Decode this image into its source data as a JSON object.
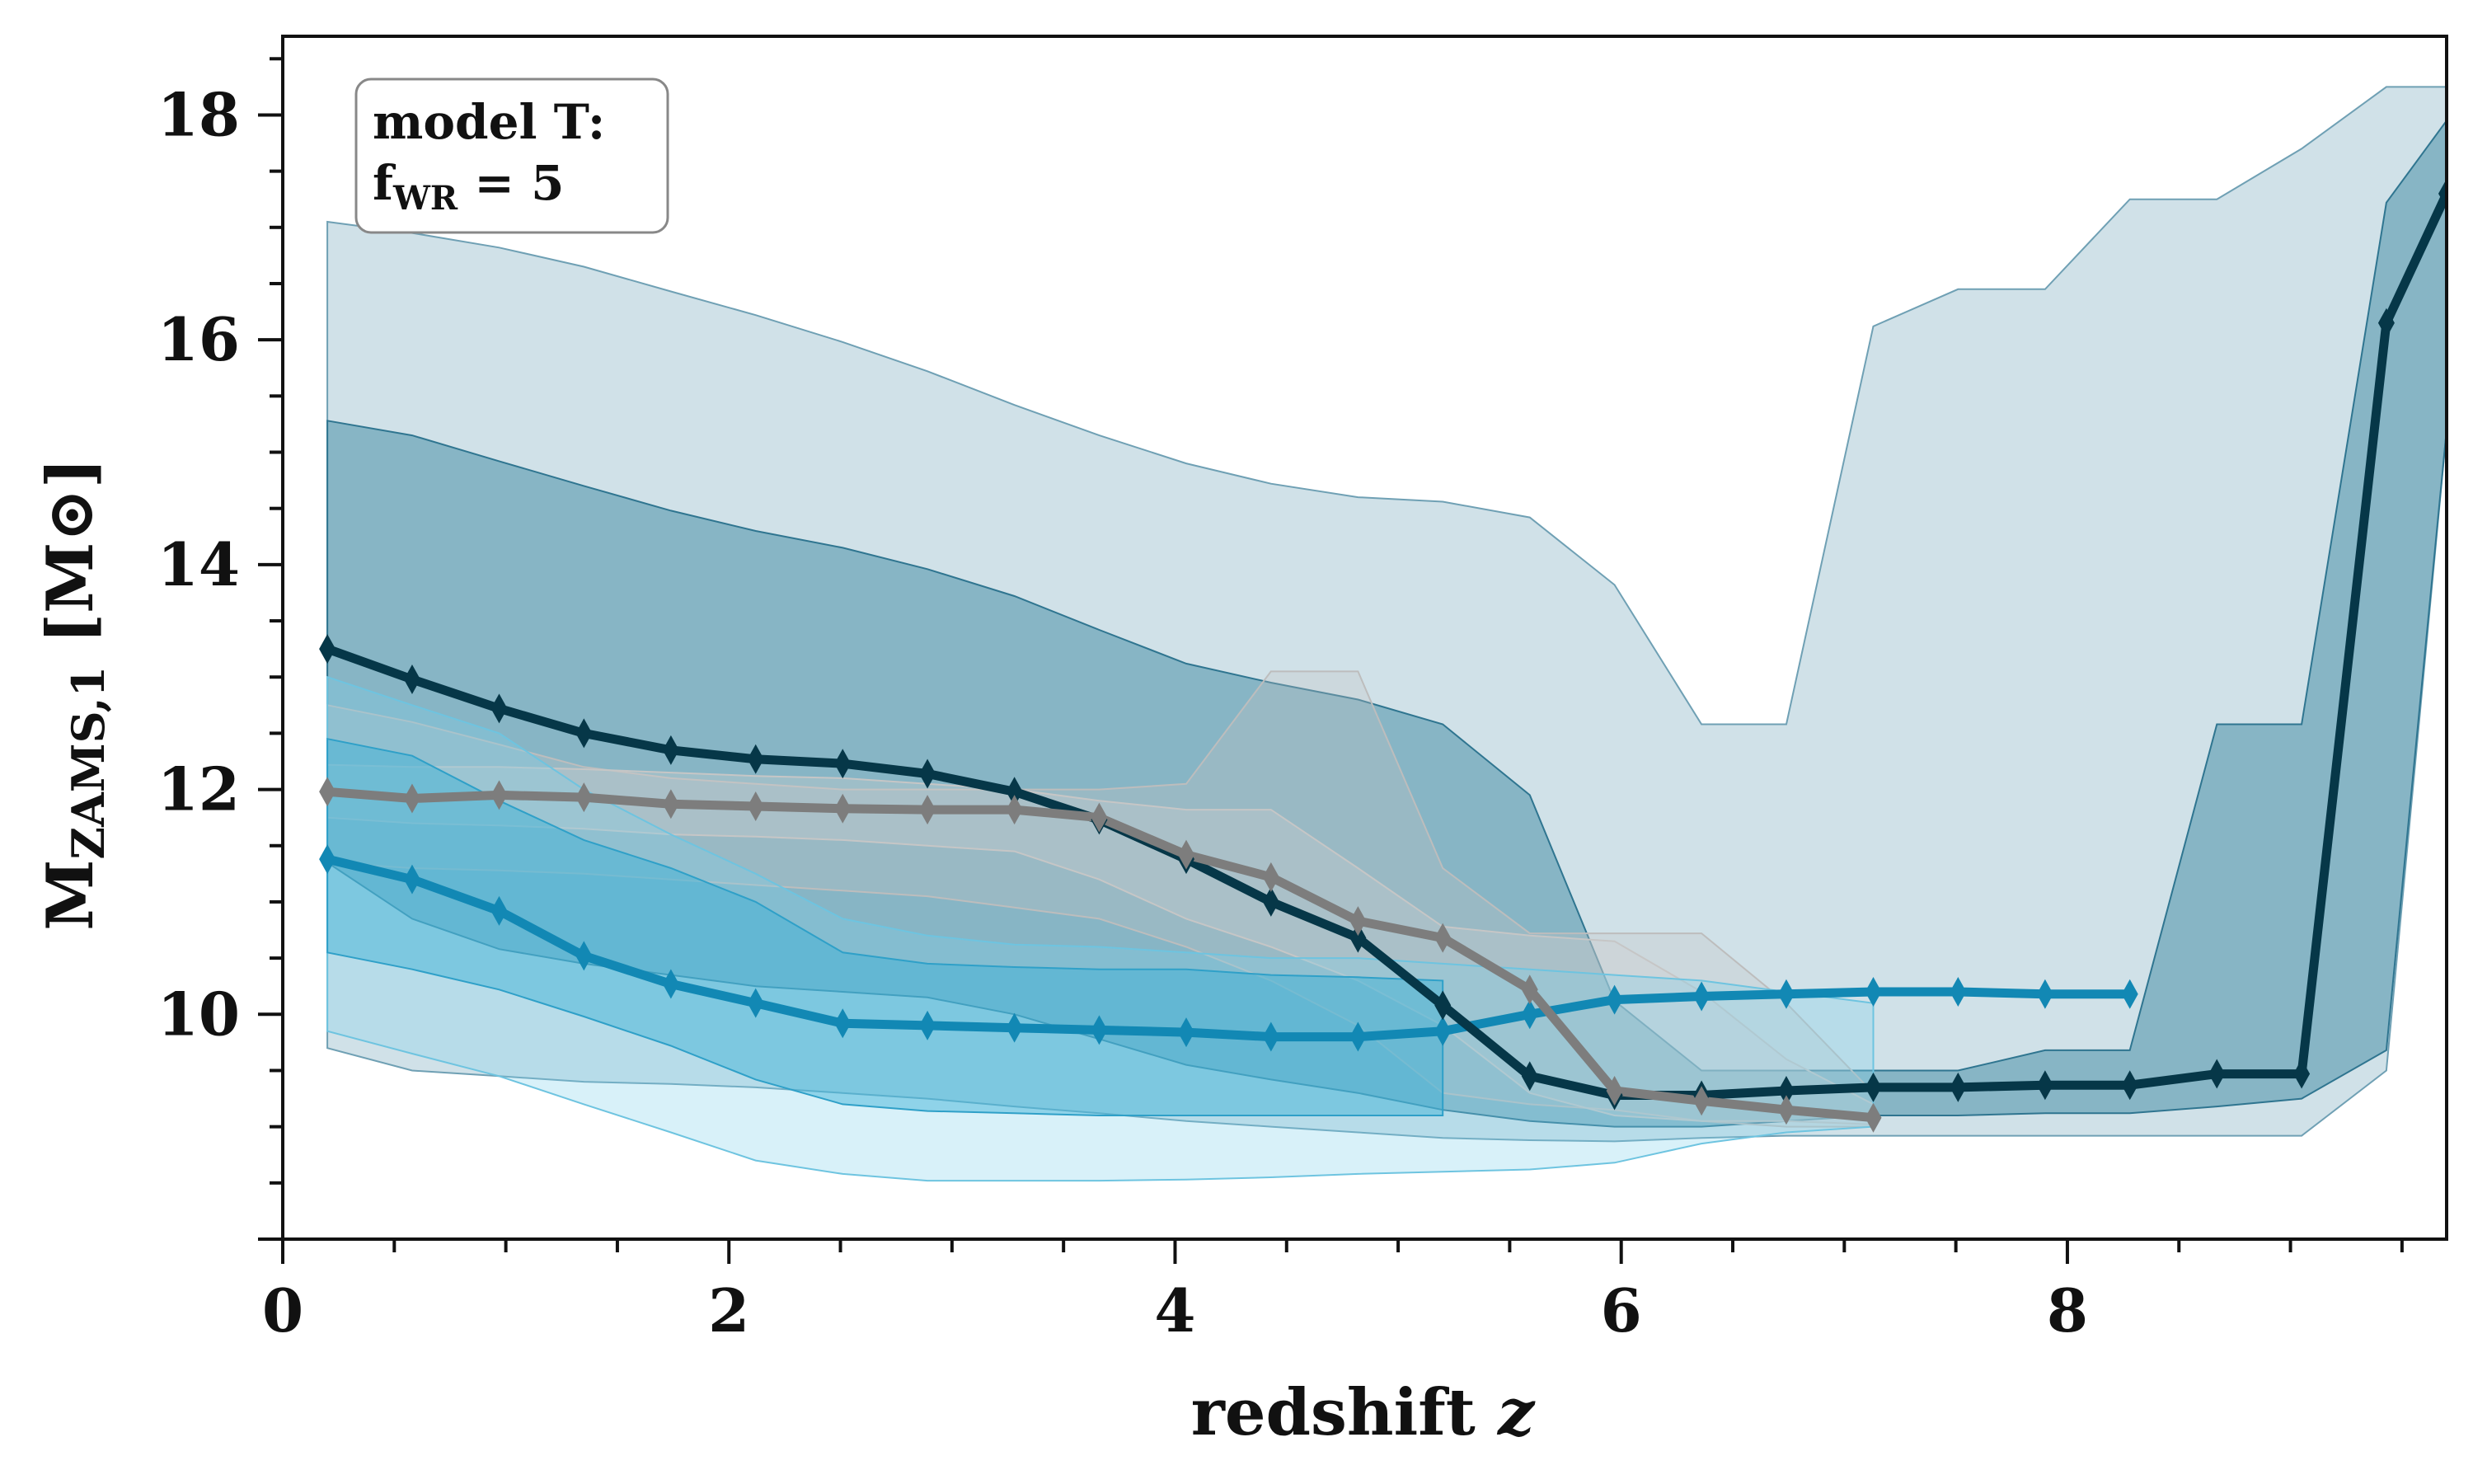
{
  "chart_data": {
    "type": "line",
    "xlabel": "redshift",
    "xlabel_var": "z",
    "ylabel": "M",
    "ylabel_sub": "ZAMS,1",
    "ylabel_unit": "[M⊙]",
    "xlim": [
      0,
      9.7
    ],
    "ylim": [
      8.0,
      18.7
    ],
    "x_ticks": [
      0,
      2,
      4,
      6,
      8
    ],
    "y_ticks": [
      10,
      12,
      14,
      16,
      18
    ],
    "x_tick_labels": [
      "0",
      "2",
      "4",
      "6",
      "8"
    ],
    "y_tick_labels": [
      "10",
      "12",
      "14",
      "16",
      "18"
    ],
    "grid": false,
    "legend_box": {
      "line1": "model T:",
      "line2_main": "f",
      "line2_sub": "WR",
      "line2_rest": " = 5",
      "placement": "top-left"
    },
    "series": [
      {
        "color": "#063748",
        "x": [
          0.2,
          0.58,
          0.97,
          1.35,
          1.74,
          2.12,
          2.51,
          2.89,
          3.28,
          3.66,
          4.05,
          4.43,
          4.82,
          5.2,
          5.59,
          5.97,
          6.36,
          6.74,
          7.13,
          7.51,
          7.9,
          8.28,
          8.67,
          9.05,
          9.43,
          9.7
        ],
        "median": [
          13.25,
          12.98,
          12.72,
          12.5,
          12.35,
          12.27,
          12.23,
          12.14,
          11.98,
          11.73,
          11.38,
          11.0,
          10.68,
          10.08,
          9.45,
          9.28,
          9.28,
          9.32,
          9.35,
          9.35,
          9.37,
          9.37,
          9.47,
          9.47,
          16.15,
          17.3
        ],
        "inner_lo": [
          11.35,
          10.85,
          10.58,
          10.45,
          10.35,
          10.25,
          10.2,
          10.15,
          10.0,
          9.78,
          9.55,
          9.42,
          9.3,
          9.15,
          9.05,
          9.0,
          9.0,
          9.05,
          9.1,
          9.1,
          9.12,
          9.12,
          9.18,
          9.25,
          9.68,
          15.2
        ],
        "inner_hi": [
          15.28,
          15.15,
          14.92,
          14.7,
          14.48,
          14.3,
          14.15,
          13.96,
          13.72,
          13.42,
          13.12,
          12.95,
          12.8,
          12.58,
          11.95,
          10.12,
          9.5,
          9.5,
          9.5,
          9.5,
          9.68,
          9.68,
          12.58,
          12.58,
          17.22,
          17.95
        ],
        "outer_lo": [
          9.7,
          9.5,
          9.45,
          9.4,
          9.38,
          9.35,
          9.3,
          9.25,
          9.18,
          9.12,
          9.05,
          9.0,
          8.95,
          8.9,
          8.88,
          8.87,
          8.9,
          8.92,
          8.92,
          8.92,
          8.92,
          8.92,
          8.92,
          8.92,
          9.5,
          15.2
        ],
        "outer_hi": [
          17.05,
          16.95,
          16.82,
          16.65,
          16.43,
          16.22,
          15.98,
          15.72,
          15.42,
          15.15,
          14.9,
          14.72,
          14.6,
          14.56,
          14.42,
          13.82,
          12.58,
          12.58,
          16.12,
          16.45,
          16.45,
          17.25,
          17.25,
          17.7,
          18.25,
          18.25
        ]
      },
      {
        "color": "#7d7d7d",
        "x": [
          0.2,
          0.58,
          0.97,
          1.35,
          1.74,
          2.12,
          2.51,
          2.89,
          3.28,
          3.66,
          4.05,
          4.43,
          4.82,
          5.2,
          5.59,
          5.97,
          6.36,
          6.74,
          7.13
        ],
        "median": [
          11.98,
          11.92,
          11.95,
          11.93,
          11.87,
          11.85,
          11.83,
          11.82,
          11.82,
          11.75,
          11.42,
          11.22,
          10.83,
          10.68,
          10.22,
          9.32,
          9.23,
          9.15,
          9.08
        ],
        "inner_lo": [
          11.75,
          11.7,
          11.68,
          11.65,
          11.6,
          11.58,
          11.55,
          11.5,
          11.45,
          11.2,
          10.85,
          10.6,
          10.3,
          9.9,
          9.3,
          9.1,
          9.05,
          9.05,
          9.02
        ],
        "inner_hi": [
          12.22,
          12.2,
          12.2,
          12.18,
          12.15,
          12.12,
          12.1,
          12.05,
          12.0,
          11.9,
          11.82,
          11.82,
          11.3,
          10.78,
          10.7,
          10.65,
          10.2,
          9.6,
          9.2
        ],
        "outer_lo": [
          11.35,
          11.3,
          11.28,
          11.25,
          11.2,
          11.15,
          11.1,
          11.05,
          10.95,
          10.85,
          10.6,
          10.3,
          9.9,
          9.3,
          9.2,
          9.15,
          9.05,
          9.0,
          9.0
        ],
        "outer_hi": [
          12.75,
          12.6,
          12.4,
          12.2,
          12.1,
          12.05,
          12.0,
          12.0,
          12.0,
          12.0,
          12.05,
          13.05,
          13.05,
          11.3,
          10.72,
          10.72,
          10.72,
          10.1,
          9.3
        ]
      },
      {
        "color": "#1288b4",
        "x": [
          0.2,
          0.58,
          0.97,
          1.35,
          1.74,
          2.12,
          2.51,
          2.89,
          3.28,
          3.66,
          4.05,
          4.43,
          4.82,
          5.2,
          5.59,
          5.97,
          6.36,
          6.74,
          7.13,
          7.51,
          7.9,
          8.28
        ],
        "median": [
          11.38,
          11.2,
          10.92,
          10.52,
          10.27,
          10.1,
          9.92,
          9.9,
          9.88,
          9.86,
          9.84,
          9.8,
          9.8,
          9.85,
          10.0,
          10.13,
          10.16,
          10.18,
          10.2,
          10.2,
          10.18,
          10.18
        ],
        "inner_lo": [
          10.55,
          10.4,
          10.22,
          9.98,
          9.72,
          9.42,
          9.2,
          9.14,
          9.12,
          9.1,
          9.1,
          9.1,
          9.1,
          9.1,
          null,
          null,
          null,
          null,
          null,
          null,
          null,
          null
        ],
        "inner_hi": [
          12.45,
          12.3,
          11.9,
          11.55,
          11.3,
          11.0,
          10.55,
          10.45,
          10.42,
          10.4,
          10.4,
          10.35,
          10.33,
          10.3,
          null,
          null,
          null,
          null,
          null,
          null,
          null,
          null
        ],
        "outer_lo": [
          9.85,
          9.65,
          9.45,
          9.2,
          8.95,
          8.7,
          8.58,
          8.52,
          8.52,
          8.52,
          8.53,
          8.55,
          8.58,
          8.6,
          8.62,
          8.68,
          8.85,
          8.95,
          9.0,
          null,
          null,
          null
        ],
        "outer_hi": [
          13.0,
          12.75,
          12.5,
          12.0,
          11.6,
          11.25,
          10.85,
          10.7,
          10.62,
          10.6,
          10.55,
          10.5,
          10.5,
          10.45,
          10.4,
          10.35,
          10.3,
          10.2,
          10.1,
          null,
          null,
          null
        ]
      }
    ]
  }
}
